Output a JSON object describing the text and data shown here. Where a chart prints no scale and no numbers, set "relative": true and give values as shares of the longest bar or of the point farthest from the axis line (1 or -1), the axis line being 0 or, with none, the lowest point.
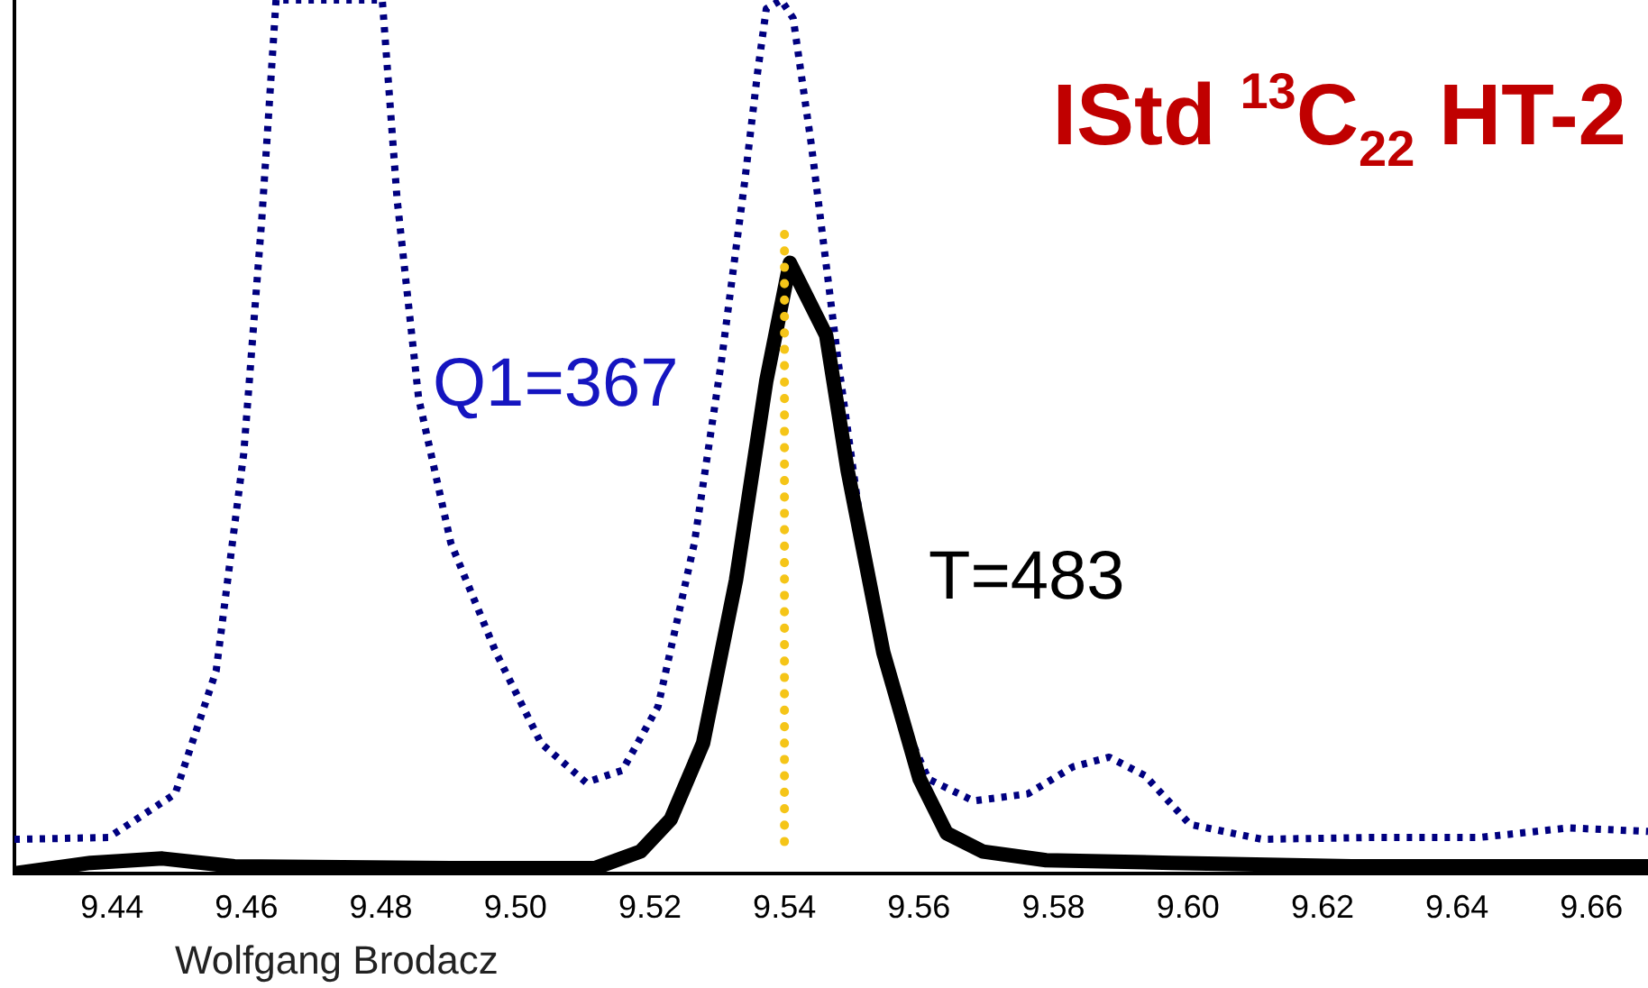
{
  "chart_data": {
    "type": "line",
    "title": "IStd $^{13}$C$_{22}$ HT-2",
    "relative": true,
    "xlim": [
      9.4255,
      9.6684
    ],
    "xticks": [
      {
        "value": 9.44,
        "label": "9.44"
      },
      {
        "value": 9.46,
        "label": "9.46"
      },
      {
        "value": 9.48,
        "label": "9.48"
      },
      {
        "value": 9.5,
        "label": "9.50"
      },
      {
        "value": 9.52,
        "label": "9.52"
      },
      {
        "value": 9.54,
        "label": "9.54"
      },
      {
        "value": 9.56,
        "label": "9.56"
      },
      {
        "value": 9.58,
        "label": "9.58"
      },
      {
        "value": 9.6,
        "label": "9.60"
      },
      {
        "value": 9.62,
        "label": "9.62"
      },
      {
        "value": 9.64,
        "label": "9.64"
      },
      {
        "value": 9.66,
        "label": "9.66"
      }
    ],
    "tick_labels": "x",
    "grid": false,
    "legend": false,
    "marker": "none",
    "series": [
      {
        "name": "Q1=367",
        "color": "#000080",
        "line_style": "dotted",
        "x": [
          9.4255,
          9.4395,
          9.4494,
          9.4555,
          9.4596,
          9.4623,
          9.4644,
          9.4802,
          9.4824,
          9.4856,
          9.4904,
          9.4971,
          9.5038,
          9.5105,
          9.5159,
          9.5212,
          9.5266,
          9.5306,
          9.5341,
          9.536,
          9.5373,
          9.5395,
          9.5413,
          9.544,
          9.548,
          9.5521,
          9.5566,
          9.5614,
          9.5681,
          9.5762,
          9.5829,
          9.5883,
          9.5936,
          9.6003,
          9.611,
          9.6271,
          9.6432,
          9.6566,
          9.6684
        ],
        "values": [
          0.039,
          0.041,
          0.091,
          0.232,
          0.481,
          0.751,
          1,
          1,
          0.772,
          0.544,
          0.378,
          0.253,
          0.149,
          0.104,
          0.118,
          0.191,
          0.378,
          0.585,
          0.793,
          0.917,
          0.99,
          1,
          0.979,
          0.834,
          0.585,
          0.357,
          0.191,
          0.108,
          0.083,
          0.091,
          0.122,
          0.133,
          0.112,
          0.056,
          0.039,
          0.041,
          0.041,
          0.052,
          0.048
        ]
      },
      {
        "name": "T=483",
        "color": "#000000",
        "line_style": "solid",
        "x": [
          9.4255,
          9.4368,
          9.4475,
          9.4582,
          9.4904,
          9.5118,
          9.5186,
          9.5231,
          9.5279,
          9.5328,
          9.5373,
          9.5408,
          9.5462,
          9.5494,
          9.5547,
          9.5601,
          9.5641,
          9.5695,
          9.5789,
          9.5976,
          9.6244,
          9.6684
        ],
        "values": [
          0,
          0.012,
          0.017,
          0.008,
          0.006,
          0.006,
          0.025,
          0.062,
          0.149,
          0.336,
          0.564,
          0.699,
          0.616,
          0.461,
          0.253,
          0.108,
          0.046,
          0.025,
          0.015,
          0.012,
          0.008,
          0.008
        ]
      }
    ],
    "ref_lines": [
      {
        "axis": "x",
        "value": 9.54,
        "color": "#f5c518",
        "line_style": "dotted"
      }
    ],
    "annotations": [
      "Wolfgang Brodacz"
    ]
  }
}
